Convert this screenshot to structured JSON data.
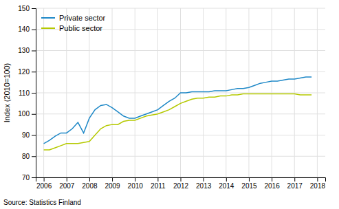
{
  "chart_data": {
    "type": "line",
    "x": [
      2006,
      2006.25,
      2006.5,
      2006.75,
      2007,
      2007.25,
      2007.5,
      2007.75,
      2008,
      2008.25,
      2008.5,
      2008.75,
      2009,
      2009.25,
      2009.5,
      2009.75,
      2010,
      2010.25,
      2010.5,
      2010.75,
      2011,
      2011.25,
      2011.5,
      2011.75,
      2012,
      2012.25,
      2012.5,
      2012.75,
      2013,
      2013.25,
      2013.5,
      2013.75,
      2014,
      2014.25,
      2014.5,
      2014.75,
      2015,
      2015.25,
      2015.5,
      2015.75,
      2016,
      2016.25,
      2016.5,
      2016.75,
      2017,
      2017.25,
      2017.5,
      2017.75
    ],
    "series": [
      {
        "name": "Private sector",
        "color": "#1e88c7",
        "values": [
          86.0,
          87.5,
          89.5,
          91.0,
          91.0,
          93.0,
          96.0,
          91.0,
          98.0,
          102.0,
          104.0,
          104.5,
          103.0,
          101.0,
          99.0,
          98.0,
          98.0,
          99.0,
          100.0,
          101.0,
          102.0,
          104.0,
          106.0,
          107.5,
          110.0,
          110.0,
          110.5,
          110.5,
          110.5,
          110.5,
          111.0,
          111.0,
          111.0,
          111.5,
          112.0,
          112.0,
          112.5,
          113.5,
          114.5,
          115.0,
          115.5,
          115.5,
          116.0,
          116.5,
          116.5,
          117.0,
          117.5,
          117.5
        ]
      },
      {
        "name": "Public sector",
        "color": "#b5c900",
        "values": [
          83.0,
          83.0,
          84.0,
          85.0,
          86.0,
          86.0,
          86.0,
          86.5,
          87.0,
          90.0,
          93.0,
          94.5,
          95.0,
          95.0,
          96.5,
          97.0,
          97.0,
          98.0,
          99.0,
          99.5,
          100.0,
          101.0,
          102.0,
          103.5,
          105.0,
          106.0,
          107.0,
          107.5,
          107.5,
          108.0,
          108.0,
          108.5,
          108.5,
          109.0,
          109.0,
          109.5,
          109.5,
          109.5,
          109.5,
          109.5,
          109.5,
          109.5,
          109.5,
          109.5,
          109.5,
          109.0,
          109.0,
          109.0
        ]
      }
    ],
    "xlim": [
      2005.65,
      2018.35
    ],
    "xticks": [
      2006,
      2007,
      2008,
      2009,
      2010,
      2011,
      2012,
      2013,
      2014,
      2015,
      2016,
      2017,
      2018
    ],
    "ylim": [
      70,
      150
    ],
    "yticks": [
      70,
      80,
      90,
      100,
      110,
      120,
      130,
      140,
      150
    ],
    "ylabel": "Index (2010=100)",
    "source": "Source: Statistics Finland",
    "grid": true,
    "legend": "upper left"
  }
}
